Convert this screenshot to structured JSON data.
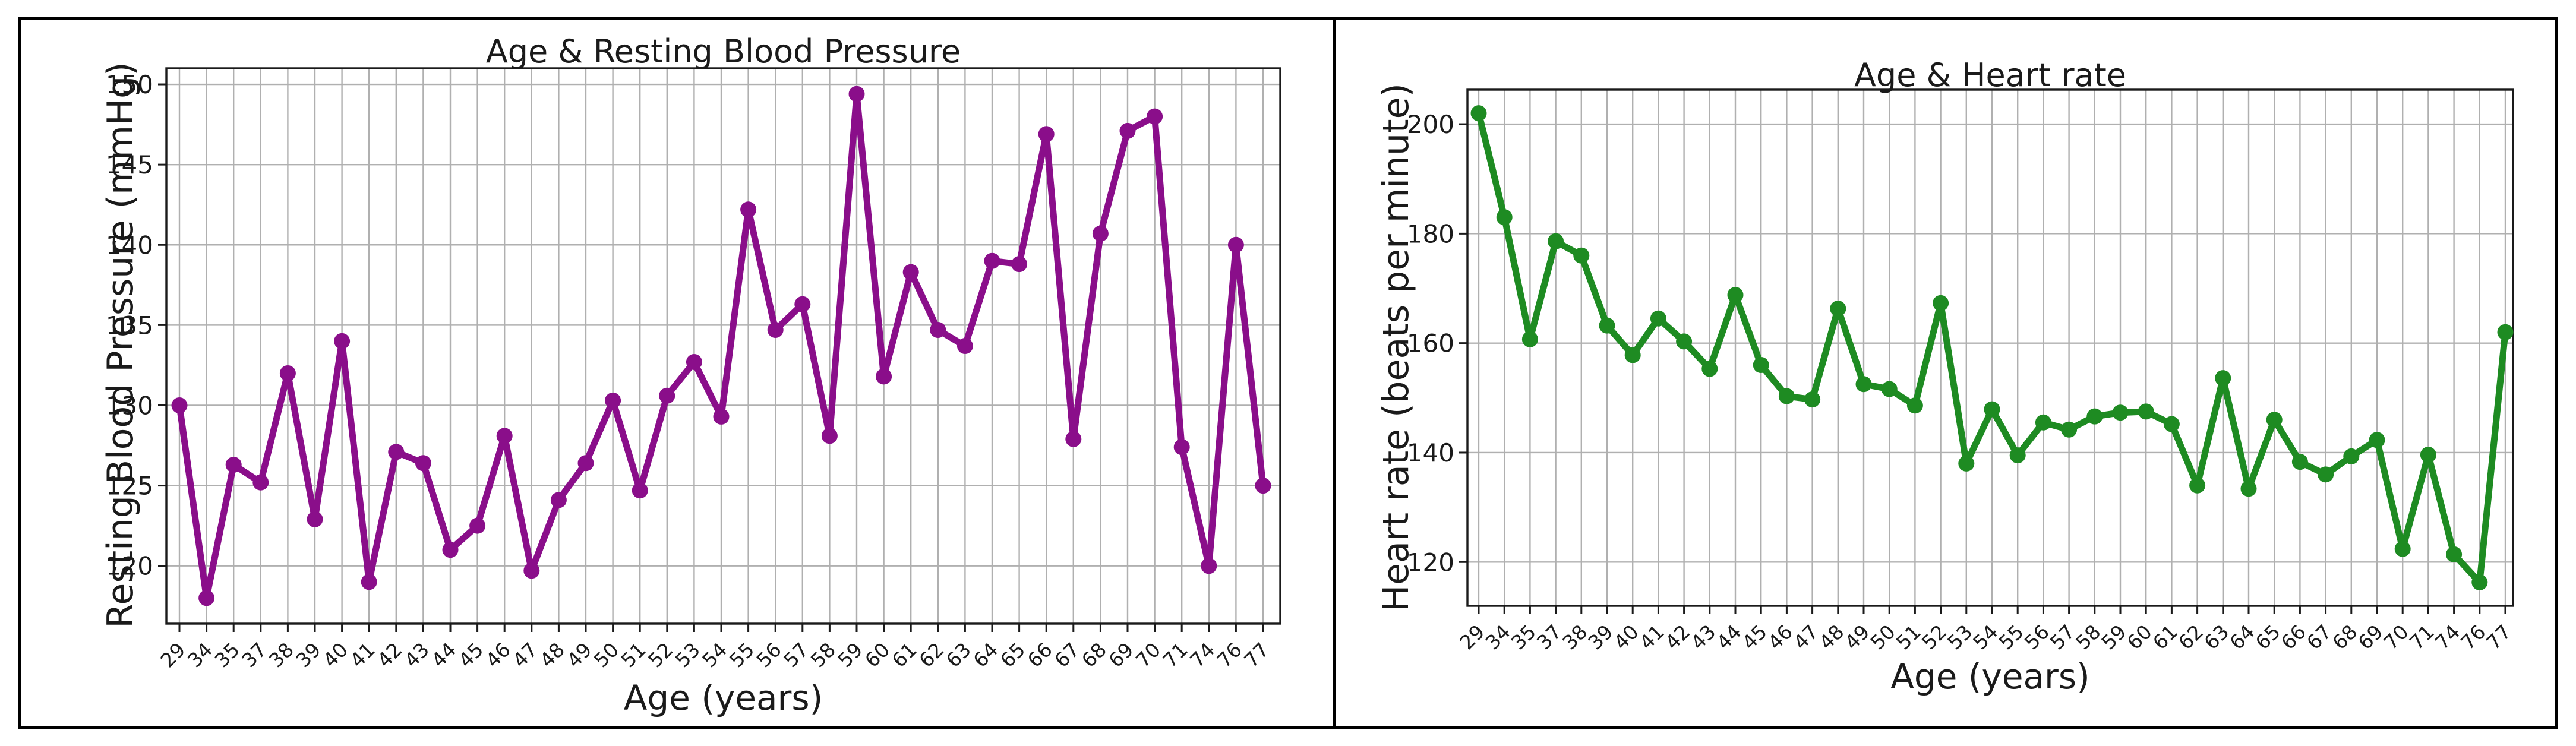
{
  "figure": {
    "background": "#ffffff",
    "border_color": "#000000",
    "grid_color": "#b0b0b0",
    "spine_color": "#1a1a1a"
  },
  "chart_data": [
    {
      "type": "line",
      "title": "Age & Resting Blood Pressure",
      "xlabel": "Age (years)",
      "ylabel": "Resting Blood Pressure (mmHg)",
      "color": "#8a0e8a",
      "marker": "o",
      "grid": true,
      "legend": "none",
      "categories": [
        "29",
        "34",
        "35",
        "37",
        "38",
        "39",
        "40",
        "41",
        "42",
        "43",
        "44",
        "45",
        "46",
        "47",
        "48",
        "49",
        "50",
        "51",
        "52",
        "53",
        "54",
        "55",
        "56",
        "57",
        "58",
        "59",
        "60",
        "61",
        "62",
        "63",
        "64",
        "65",
        "66",
        "67",
        "68",
        "69",
        "70",
        "71",
        "74",
        "76",
        "77"
      ],
      "values": [
        130.0,
        118.0,
        126.3,
        125.2,
        132.0,
        122.9,
        134.0,
        119.0,
        127.1,
        126.4,
        121.0,
        122.5,
        128.1,
        119.7,
        124.1,
        126.4,
        130.3,
        124.7,
        130.6,
        132.7,
        129.3,
        142.2,
        134.7,
        136.3,
        128.1,
        149.4,
        131.8,
        138.3,
        134.7,
        133.7,
        139.0,
        138.8,
        146.9,
        127.9,
        140.7,
        147.1,
        148.0,
        127.4,
        120.0,
        140.0,
        125.0
      ],
      "yticks": [
        120,
        125,
        130,
        135,
        140,
        145,
        150
      ],
      "ylim": [
        116.4,
        151.0
      ]
    },
    {
      "type": "line",
      "title": "Age & Heart rate",
      "xlabel": "Age (years)",
      "ylabel": "Heart rate (beats per minute)",
      "color": "#1e8b22",
      "marker": "o",
      "grid": true,
      "legend": "none",
      "categories": [
        "29",
        "34",
        "35",
        "37",
        "38",
        "39",
        "40",
        "41",
        "42",
        "43",
        "44",
        "45",
        "46",
        "47",
        "48",
        "49",
        "50",
        "51",
        "52",
        "53",
        "54",
        "55",
        "56",
        "57",
        "58",
        "59",
        "60",
        "61",
        "62",
        "63",
        "64",
        "65",
        "66",
        "67",
        "68",
        "69",
        "70",
        "71",
        "74",
        "76",
        "77"
      ],
      "values": [
        202.0,
        183.0,
        160.7,
        178.6,
        176.0,
        163.2,
        157.8,
        164.5,
        160.3,
        155.3,
        168.8,
        156.0,
        150.3,
        149.7,
        166.3,
        152.5,
        151.6,
        148.6,
        167.3,
        138.0,
        147.9,
        139.5,
        145.5,
        144.2,
        146.6,
        147.3,
        147.5,
        145.2,
        134.0,
        153.6,
        133.4,
        146.0,
        138.3,
        136.0,
        139.3,
        142.3,
        122.4,
        139.6,
        121.4,
        116.3,
        162.0
      ],
      "yticks": [
        120,
        140,
        160,
        180,
        200
      ],
      "ylim": [
        112.0,
        206.3
      ]
    }
  ]
}
